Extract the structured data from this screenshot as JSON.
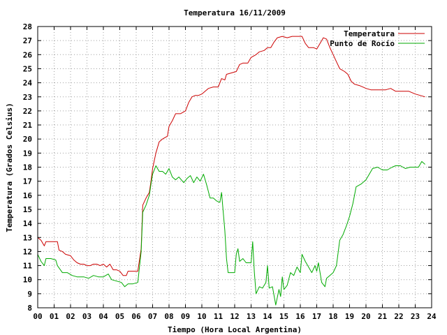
{
  "chart_data": {
    "type": "line",
    "title": "Temperatura 16/11/2009",
    "xlabel": "Tiempo (Hora Local Argentina)",
    "ylabel": "Temperatura (Grados Celsius)",
    "xlim": [
      0,
      24
    ],
    "ylim": [
      8,
      28
    ],
    "x_ticks": [
      "00",
      "01",
      "02",
      "03",
      "04",
      "05",
      "06",
      "07",
      "08",
      "09",
      "10",
      "11",
      "12",
      "13",
      "14",
      "15",
      "16",
      "17",
      "18",
      "19",
      "20",
      "21",
      "22",
      "23",
      "24"
    ],
    "y_ticks": [
      8,
      9,
      10,
      11,
      12,
      13,
      14,
      15,
      16,
      17,
      18,
      19,
      20,
      21,
      22,
      23,
      24,
      25,
      26,
      27,
      28
    ],
    "grid": true,
    "legend_position": "top-right",
    "colors": {
      "Temperatura": "#cc0000",
      "Punto de Rocío": "#00aa00"
    },
    "series": [
      {
        "name": "Temperatura",
        "color": "#cc0000",
        "points": [
          [
            0.0,
            13.0
          ],
          [
            0.2,
            12.8
          ],
          [
            0.4,
            12.4
          ],
          [
            0.5,
            12.7
          ],
          [
            0.8,
            12.7
          ],
          [
            1.0,
            12.7
          ],
          [
            1.2,
            12.7
          ],
          [
            1.3,
            12.1
          ],
          [
            1.5,
            12.0
          ],
          [
            1.7,
            11.8
          ],
          [
            2.0,
            11.7
          ],
          [
            2.2,
            11.4
          ],
          [
            2.4,
            11.2
          ],
          [
            2.6,
            11.1
          ],
          [
            2.8,
            11.1
          ],
          [
            3.0,
            11.0
          ],
          [
            3.2,
            11.0
          ],
          [
            3.4,
            11.1
          ],
          [
            3.6,
            11.1
          ],
          [
            3.8,
            11.0
          ],
          [
            4.0,
            11.1
          ],
          [
            4.2,
            10.9
          ],
          [
            4.4,
            11.1
          ],
          [
            4.6,
            10.7
          ],
          [
            4.8,
            10.7
          ],
          [
            5.0,
            10.6
          ],
          [
            5.2,
            10.3
          ],
          [
            5.4,
            10.3
          ],
          [
            5.5,
            10.6
          ],
          [
            5.8,
            10.6
          ],
          [
            6.1,
            10.6
          ],
          [
            6.3,
            12.2
          ],
          [
            6.4,
            15.3
          ],
          [
            6.6,
            15.8
          ],
          [
            6.8,
            16.2
          ],
          [
            6.9,
            17.0
          ],
          [
            7.0,
            17.9
          ],
          [
            7.2,
            19.0
          ],
          [
            7.4,
            19.8
          ],
          [
            7.6,
            20.0
          ],
          [
            7.9,
            20.2
          ],
          [
            8.0,
            20.9
          ],
          [
            8.2,
            21.3
          ],
          [
            8.4,
            21.8
          ],
          [
            8.7,
            21.8
          ],
          [
            9.0,
            22.0
          ],
          [
            9.2,
            22.6
          ],
          [
            9.4,
            23.0
          ],
          [
            9.6,
            23.1
          ],
          [
            9.8,
            23.1
          ],
          [
            10.0,
            23.2
          ],
          [
            10.2,
            23.4
          ],
          [
            10.4,
            23.6
          ],
          [
            10.7,
            23.7
          ],
          [
            11.0,
            23.7
          ],
          [
            11.2,
            24.3
          ],
          [
            11.4,
            24.2
          ],
          [
            11.5,
            24.6
          ],
          [
            11.8,
            24.7
          ],
          [
            12.1,
            24.8
          ],
          [
            12.3,
            25.3
          ],
          [
            12.5,
            25.4
          ],
          [
            12.8,
            25.4
          ],
          [
            13.0,
            25.8
          ],
          [
            13.3,
            26.0
          ],
          [
            13.5,
            26.2
          ],
          [
            13.8,
            26.3
          ],
          [
            14.0,
            26.5
          ],
          [
            14.2,
            26.5
          ],
          [
            14.4,
            26.9
          ],
          [
            14.6,
            27.2
          ],
          [
            14.9,
            27.3
          ],
          [
            15.2,
            27.2
          ],
          [
            15.5,
            27.3
          ],
          [
            15.8,
            27.3
          ],
          [
            16.1,
            27.3
          ],
          [
            16.3,
            26.8
          ],
          [
            16.5,
            26.5
          ],
          [
            16.8,
            26.5
          ],
          [
            17.0,
            26.4
          ],
          [
            17.2,
            26.8
          ],
          [
            17.4,
            27.2
          ],
          [
            17.6,
            27.1
          ],
          [
            17.8,
            26.5
          ],
          [
            18.0,
            26.0
          ],
          [
            18.2,
            25.5
          ],
          [
            18.4,
            25.0
          ],
          [
            18.7,
            24.8
          ],
          [
            18.9,
            24.6
          ],
          [
            19.1,
            24.1
          ],
          [
            19.3,
            23.9
          ],
          [
            19.6,
            23.8
          ],
          [
            19.8,
            23.7
          ],
          [
            20.0,
            23.6
          ],
          [
            20.3,
            23.5
          ],
          [
            20.8,
            23.5
          ],
          [
            21.2,
            23.5
          ],
          [
            21.5,
            23.6
          ],
          [
            21.8,
            23.4
          ],
          [
            22.2,
            23.4
          ],
          [
            22.6,
            23.4
          ],
          [
            23.0,
            23.2
          ],
          [
            23.3,
            23.1
          ],
          [
            23.6,
            23.0
          ]
        ]
      },
      {
        "name": "Punto de Rocío",
        "color": "#00aa00",
        "points": [
          [
            0.0,
            11.8
          ],
          [
            0.2,
            11.3
          ],
          [
            0.4,
            11.0
          ],
          [
            0.5,
            11.5
          ],
          [
            0.8,
            11.5
          ],
          [
            1.1,
            11.4
          ],
          [
            1.2,
            11.0
          ],
          [
            1.5,
            10.5
          ],
          [
            1.8,
            10.5
          ],
          [
            2.1,
            10.3
          ],
          [
            2.4,
            10.2
          ],
          [
            2.8,
            10.2
          ],
          [
            3.1,
            10.1
          ],
          [
            3.4,
            10.3
          ],
          [
            3.7,
            10.2
          ],
          [
            4.0,
            10.2
          ],
          [
            4.3,
            10.4
          ],
          [
            4.5,
            10.0
          ],
          [
            4.8,
            9.9
          ],
          [
            5.1,
            9.8
          ],
          [
            5.3,
            9.5
          ],
          [
            5.5,
            9.7
          ],
          [
            5.8,
            9.7
          ],
          [
            6.1,
            9.8
          ],
          [
            6.3,
            12.0
          ],
          [
            6.4,
            14.8
          ],
          [
            6.6,
            15.3
          ],
          [
            6.8,
            16.0
          ],
          [
            6.9,
            16.8
          ],
          [
            7.0,
            17.5
          ],
          [
            7.2,
            18.1
          ],
          [
            7.4,
            17.7
          ],
          [
            7.6,
            17.7
          ],
          [
            7.8,
            17.5
          ],
          [
            8.0,
            17.9
          ],
          [
            8.2,
            17.3
          ],
          [
            8.4,
            17.1
          ],
          [
            8.6,
            17.3
          ],
          [
            8.9,
            16.9
          ],
          [
            9.1,
            17.2
          ],
          [
            9.3,
            17.4
          ],
          [
            9.5,
            16.9
          ],
          [
            9.7,
            17.3
          ],
          [
            9.9,
            17.0
          ],
          [
            10.1,
            17.5
          ],
          [
            10.3,
            16.7
          ],
          [
            10.5,
            15.8
          ],
          [
            10.7,
            15.8
          ],
          [
            10.9,
            15.6
          ],
          [
            11.1,
            15.5
          ],
          [
            11.2,
            16.2
          ],
          [
            11.4,
            13.5
          ],
          [
            11.5,
            11.5
          ],
          [
            11.6,
            10.5
          ],
          [
            12.0,
            10.5
          ],
          [
            12.1,
            11.8
          ],
          [
            12.2,
            12.2
          ],
          [
            12.3,
            11.3
          ],
          [
            12.5,
            11.5
          ],
          [
            12.7,
            11.2
          ],
          [
            13.0,
            11.2
          ],
          [
            13.1,
            12.7
          ],
          [
            13.2,
            10.5
          ],
          [
            13.3,
            9.0
          ],
          [
            13.5,
            9.5
          ],
          [
            13.7,
            9.4
          ],
          [
            13.9,
            9.8
          ],
          [
            14.0,
            11.0
          ],
          [
            14.1,
            9.4
          ],
          [
            14.3,
            9.5
          ],
          [
            14.5,
            8.2
          ],
          [
            14.7,
            9.3
          ],
          [
            14.8,
            8.8
          ],
          [
            14.9,
            10.2
          ],
          [
            15.0,
            9.3
          ],
          [
            15.2,
            9.6
          ],
          [
            15.4,
            10.5
          ],
          [
            15.6,
            10.3
          ],
          [
            15.8,
            10.9
          ],
          [
            16.0,
            10.5
          ],
          [
            16.1,
            11.8
          ],
          [
            16.3,
            11.3
          ],
          [
            16.5,
            10.9
          ],
          [
            16.7,
            10.5
          ],
          [
            16.9,
            11.0
          ],
          [
            17.0,
            10.6
          ],
          [
            17.1,
            11.2
          ],
          [
            17.3,
            9.8
          ],
          [
            17.5,
            9.5
          ],
          [
            17.6,
            10.1
          ],
          [
            17.8,
            10.3
          ],
          [
            18.0,
            10.5
          ],
          [
            18.2,
            11.0
          ],
          [
            18.4,
            12.8
          ],
          [
            18.6,
            13.2
          ],
          [
            18.8,
            13.8
          ],
          [
            19.0,
            14.5
          ],
          [
            19.2,
            15.4
          ],
          [
            19.4,
            16.6
          ],
          [
            19.7,
            16.8
          ],
          [
            20.0,
            17.1
          ],
          [
            20.2,
            17.5
          ],
          [
            20.4,
            17.9
          ],
          [
            20.7,
            18.0
          ],
          [
            21.0,
            17.8
          ],
          [
            21.3,
            17.8
          ],
          [
            21.6,
            18.0
          ],
          [
            21.8,
            18.1
          ],
          [
            22.1,
            18.1
          ],
          [
            22.4,
            17.9
          ],
          [
            22.7,
            18.0
          ],
          [
            23.0,
            18.0
          ],
          [
            23.2,
            18.0
          ],
          [
            23.4,
            18.4
          ],
          [
            23.6,
            18.2
          ]
        ]
      }
    ]
  }
}
